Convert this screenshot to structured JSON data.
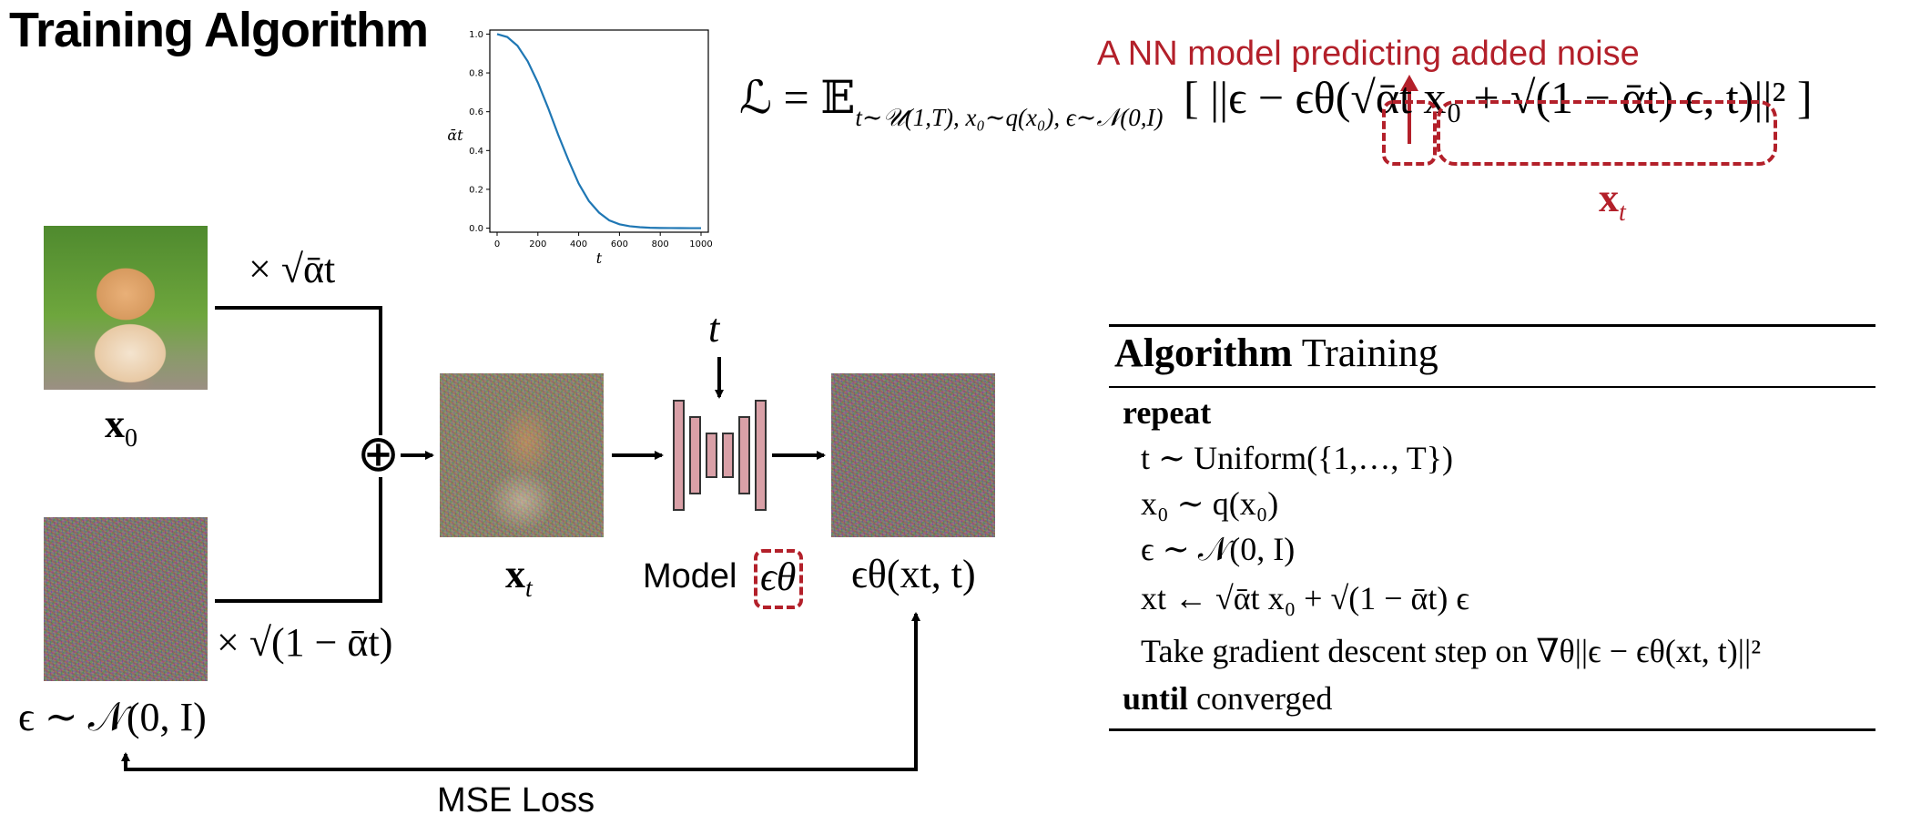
{
  "title": "Training Algorithm",
  "annotation": "A NN model predicting added noise",
  "loss_equation": {
    "lhs": "ℒ = 𝔼",
    "subscript": "t∼𝒰(1,T), x₀∼q(x₀), ϵ∼𝒩(0,I)",
    "body": "[ ||ϵ − ϵθ(√ᾱt x₀ + √(1 − ᾱt) ϵ, t)||² ]",
    "xt_label": "x",
    "xt_sub": "t"
  },
  "diagram": {
    "x0_label": "x",
    "x0_sub": "0",
    "scale_x0": "× √ᾱt",
    "scale_eps": "× √(1 − ᾱt)",
    "eps_label": "ϵ ∼ 𝒩(0, I)",
    "xt_label": "x",
    "xt_sub": "t",
    "t_label": "t",
    "model_label": "Model",
    "model_symbol": "ϵθ",
    "output_label": "ϵθ(xt, t)",
    "loss_label": "MSE Loss",
    "sum_symbol": "⊕"
  },
  "algorithm": {
    "heading_bold": "Algorithm",
    "heading_rest": " Training",
    "repeat": "repeat",
    "step1": "t ∼ Uniform({1,…, T})",
    "step2": "x₀ ∼ q(x₀)",
    "step3": "ϵ ∼ 𝒩(0, I)",
    "step4": "xt ← √ᾱt x₀ + √(1 − ᾱt) ϵ",
    "step5": "Take gradient descent step on ∇θ||ϵ − ϵθ(xt, t)||²",
    "until_bold": "until",
    "until_rest": " converged"
  },
  "colors": {
    "accent_red": "#b3202a",
    "curve_blue": "#1f77b4",
    "unet_fill": "#d9a0a7"
  },
  "chart_data": {
    "type": "line",
    "title": "",
    "xlabel": "t",
    "ylabel": "ᾱt",
    "xlim": [
      0,
      1000
    ],
    "ylim": [
      0,
      1.0
    ],
    "xticks": [
      "0",
      "200",
      "400",
      "600",
      "800",
      "1000"
    ],
    "yticks": [
      "0.0",
      "0.2",
      "0.4",
      "0.6",
      "0.8",
      "1.0"
    ],
    "series": [
      {
        "name": "alpha_bar",
        "x": [
          0,
          50,
          100,
          150,
          200,
          250,
          300,
          350,
          400,
          450,
          500,
          550,
          600,
          650,
          700,
          750,
          800,
          850,
          900,
          950,
          1000
        ],
        "values": [
          1.0,
          0.985,
          0.94,
          0.86,
          0.75,
          0.62,
          0.48,
          0.35,
          0.23,
          0.14,
          0.08,
          0.04,
          0.02,
          0.01,
          0.005,
          0.002,
          0.001,
          0.0005,
          0.0002,
          0.0001,
          0.0
        ]
      }
    ]
  }
}
